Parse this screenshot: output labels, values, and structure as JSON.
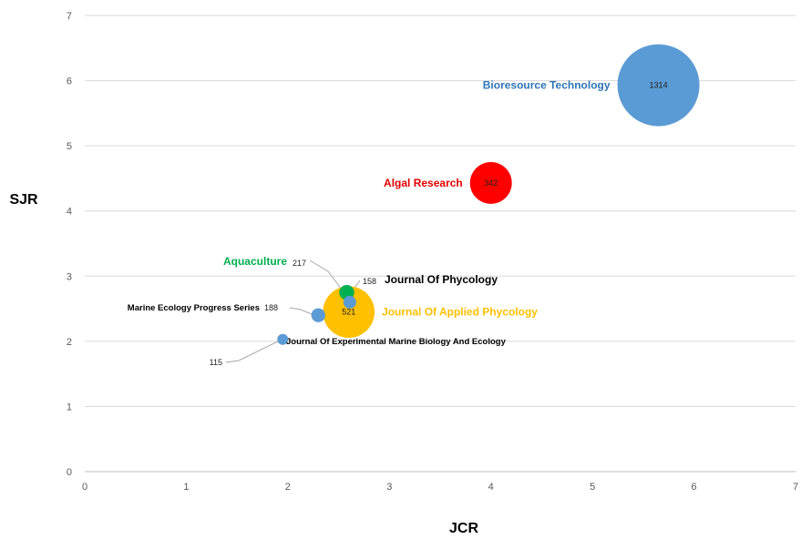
{
  "chart_data": {
    "type": "bubble",
    "xlabel": "JCR",
    "ylabel": "SJR",
    "xlim": [
      0,
      7
    ],
    "ylim": [
      0,
      7
    ],
    "x_ticks": [
      "0",
      "1",
      "2",
      "3",
      "4",
      "5",
      "6",
      "7"
    ],
    "y_ticks": [
      "0",
      "1",
      "2",
      "3",
      "4",
      "5",
      "6",
      "7"
    ],
    "grid": "horizontal",
    "points": [
      {
        "name": "Bioresource Technology",
        "x": 5.65,
        "y": 5.93,
        "size": 1314,
        "size_label": "1314",
        "color": "#5b9bd5",
        "label_color": "#2e75b6",
        "count_inside": true
      },
      {
        "name": "Algal Research",
        "x": 4.0,
        "y": 4.43,
        "size": 342,
        "size_label": "342",
        "color": "#ff0000",
        "label_color": "#e00000",
        "count_inside": true
      },
      {
        "name": "Journal Of Applied Phycology",
        "x": 2.6,
        "y": 2.45,
        "size": 521,
        "size_label": "521",
        "color": "#ffc000",
        "label_color": "#ffc000",
        "count_inside": true
      },
      {
        "name": "Aquaculture",
        "x": 2.58,
        "y": 2.75,
        "size": 217,
        "size_label": "217",
        "color": "#00b050",
        "label_color": "#00b050",
        "count_inside": false
      },
      {
        "name": "Journal Of Phycology",
        "x": 2.61,
        "y": 2.6,
        "size": 158,
        "size_label": "158",
        "color": "#5b9bd5",
        "label_color": "#000000",
        "count_inside": false
      },
      {
        "name": "Marine Ecology Progress Series",
        "x": 2.3,
        "y": 2.4,
        "size": 188,
        "size_label": "188",
        "color": "#5b9bd5",
        "label_color": "#000000",
        "count_inside": false
      },
      {
        "name": "Journal Of Experimental Marine Biology And Ecology",
        "x": 1.95,
        "y": 2.03,
        "size": 115,
        "size_label": "115",
        "color": "#5b9bd5",
        "label_color": "#000000",
        "count_inside": false
      }
    ]
  }
}
